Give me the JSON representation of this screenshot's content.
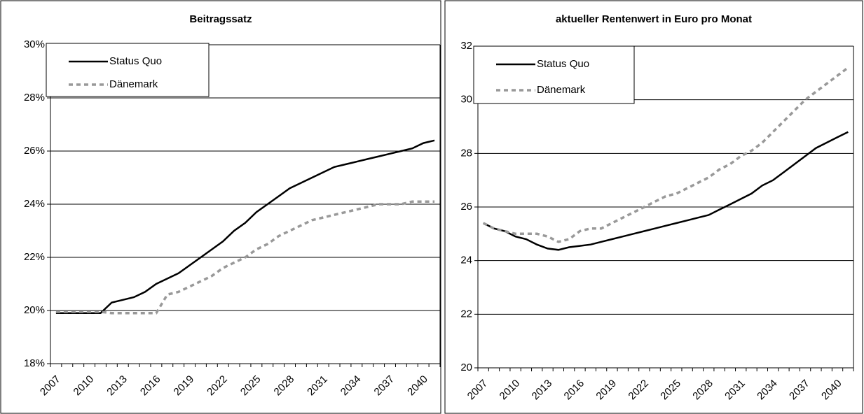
{
  "chart_data": [
    {
      "type": "line",
      "title": "Beitragssatz",
      "categories": [
        "2007",
        null,
        null,
        "2010",
        null,
        null,
        "2013",
        null,
        null,
        "2016",
        null,
        null,
        "2019",
        null,
        null,
        "2022",
        null,
        null,
        "2025",
        null,
        null,
        "2028",
        null,
        null,
        "2031",
        null,
        null,
        "2034",
        null,
        null,
        "2037",
        null,
        null,
        "2040",
        null
      ],
      "series": [
        {
          "name": "Status Quo",
          "color": "#000000",
          "dash": false,
          "values": [
            19.9,
            19.9,
            19.9,
            19.9,
            19.9,
            20.3,
            20.4,
            20.5,
            20.7,
            21.0,
            21.2,
            21.4,
            21.7,
            22.0,
            22.3,
            22.6,
            23.0,
            23.3,
            23.7,
            24.0,
            24.3,
            24.6,
            24.8,
            25.0,
            25.2,
            25.4,
            25.5,
            25.6,
            25.7,
            25.8,
            25.9,
            26.0,
            26.1,
            26.3,
            26.4
          ]
        },
        {
          "name": "Dänemark",
          "color": "#999999",
          "dash": true,
          "values": [
            19.95,
            19.95,
            19.95,
            19.95,
            19.95,
            19.9,
            19.9,
            19.9,
            19.9,
            19.9,
            20.6,
            20.7,
            20.9,
            21.1,
            21.3,
            21.6,
            21.8,
            22.0,
            22.3,
            22.5,
            22.8,
            23.0,
            23.2,
            23.4,
            23.5,
            23.6,
            23.7,
            23.8,
            23.9,
            24.0,
            24.0,
            24.0,
            24.1,
            24.1,
            24.1
          ]
        }
      ],
      "ylim": [
        18,
        30
      ],
      "yticks": [
        {
          "value": 18,
          "label": "18%"
        },
        {
          "value": 20,
          "label": "20%"
        },
        {
          "value": 22,
          "label": "22%"
        },
        {
          "value": 24,
          "label": "24%"
        },
        {
          "value": 26,
          "label": "26%"
        },
        {
          "value": 28,
          "label": "28%"
        },
        {
          "value": 30,
          "label": "30%"
        }
      ],
      "grid": true
    },
    {
      "type": "line",
      "title": "aktueller Rentenwert in Euro pro Monat",
      "categories": [
        "2007",
        null,
        null,
        "2010",
        null,
        null,
        "2013",
        null,
        null,
        "2016",
        null,
        null,
        "2019",
        null,
        null,
        "2022",
        null,
        null,
        "2025",
        null,
        null,
        "2028",
        null,
        null,
        "2031",
        null,
        null,
        "2034",
        null,
        null,
        "2037",
        null,
        null,
        "2040",
        null
      ],
      "series": [
        {
          "name": "Status Quo",
          "color": "#000000",
          "dash": false,
          "values": [
            25.4,
            25.2,
            25.1,
            24.9,
            24.8,
            24.6,
            24.45,
            24.4,
            24.5,
            24.55,
            24.6,
            24.7,
            24.8,
            24.9,
            25.0,
            25.1,
            25.2,
            25.3,
            25.4,
            25.5,
            25.6,
            25.7,
            25.9,
            26.1,
            26.3,
            26.5,
            26.8,
            27.0,
            27.3,
            27.6,
            27.9,
            28.2,
            28.4,
            28.6,
            28.8
          ]
        },
        {
          "name": "Dänemark",
          "color": "#999999",
          "dash": true,
          "values": [
            25.4,
            25.2,
            25.1,
            25.0,
            25.0,
            25.0,
            24.9,
            24.7,
            24.8,
            25.1,
            25.2,
            25.2,
            25.4,
            25.6,
            25.8,
            26.0,
            26.2,
            26.4,
            26.5,
            26.7,
            26.9,
            27.1,
            27.4,
            27.6,
            27.9,
            28.1,
            28.4,
            28.8,
            29.2,
            29.6,
            30.0,
            30.3,
            30.6,
            30.9,
            31.2
          ]
        }
      ],
      "ylim": [
        20,
        32
      ],
      "yticks": [
        20,
        22,
        24,
        26,
        28,
        30,
        32
      ],
      "grid": true
    }
  ]
}
